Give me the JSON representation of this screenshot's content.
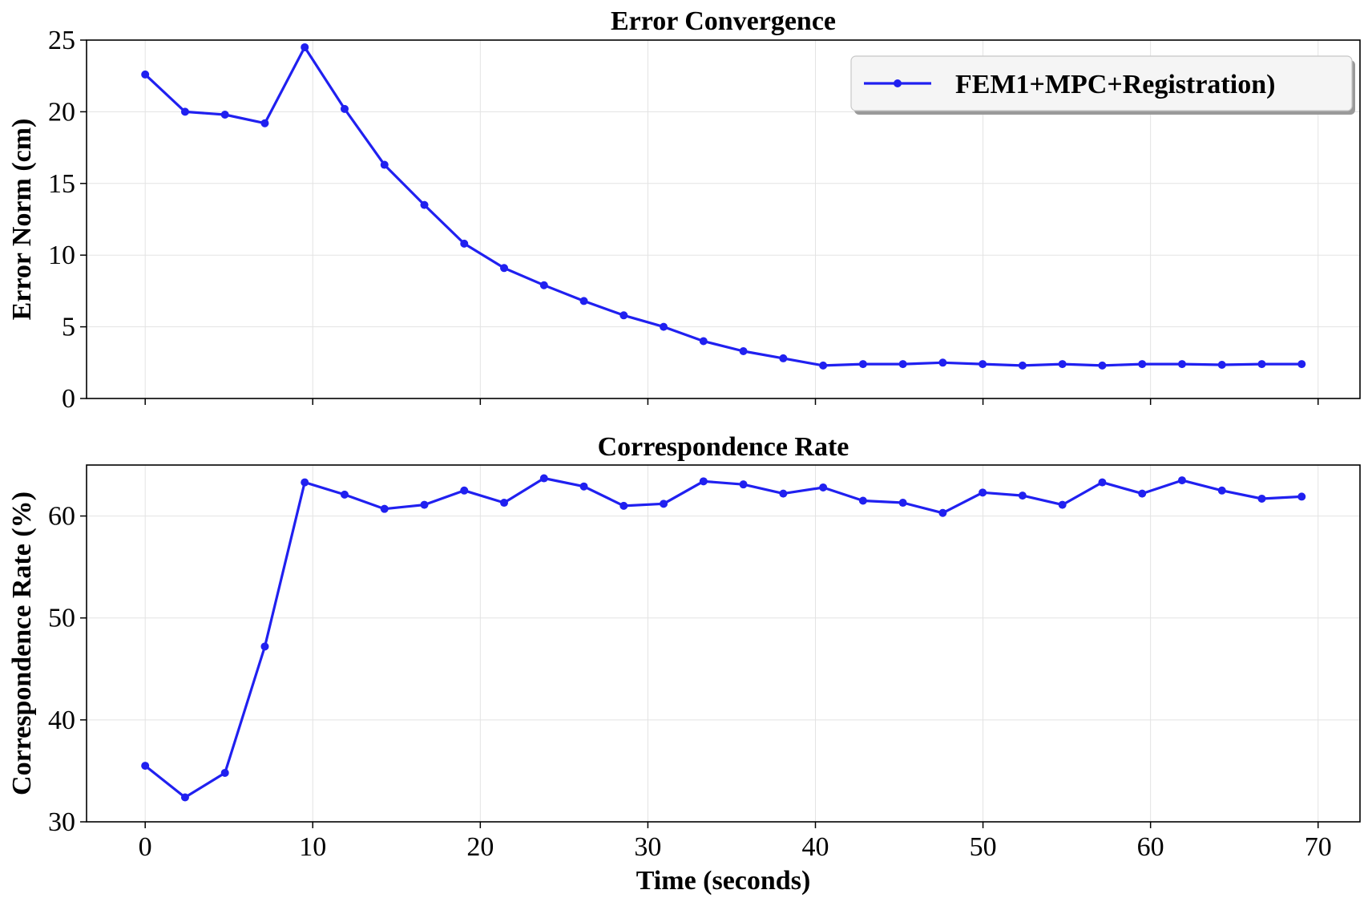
{
  "chart_data": [
    {
      "type": "line",
      "title": "Error Convergence",
      "xlabel": "",
      "ylabel": "Error Norm (cm)",
      "xlim": [
        -3.5,
        72.5
      ],
      "ylim": [
        0,
        25
      ],
      "xticks": [
        0,
        10,
        20,
        30,
        40,
        50,
        60,
        70
      ],
      "yticks": [
        0,
        5,
        10,
        15,
        20,
        25
      ],
      "x_tick_labels_visible": false,
      "grid": true,
      "legend": {
        "placement": "top-right",
        "entries": [
          "FEM1+MPC+Registration)"
        ]
      },
      "series": [
        {
          "name": "FEM1+MPC+Registration)",
          "color": "#2020f0",
          "marker": "circle",
          "x": [
            0,
            2.38,
            4.76,
            7.14,
            9.52,
            11.9,
            14.28,
            16.66,
            19.04,
            21.42,
            23.8,
            26.18,
            28.56,
            30.94,
            33.32,
            35.7,
            38.08,
            40.46,
            42.84,
            45.22,
            47.6,
            49.98,
            52.36,
            54.74,
            57.12,
            59.5,
            61.88,
            64.26,
            66.64,
            69.02
          ],
          "y": [
            22.6,
            20.0,
            19.8,
            19.2,
            24.5,
            20.2,
            16.3,
            13.5,
            10.8,
            9.1,
            7.9,
            6.8,
            5.8,
            5.0,
            4.0,
            3.3,
            2.8,
            2.3,
            2.4,
            2.4,
            2.5,
            2.4,
            2.3,
            2.4,
            2.3,
            2.4,
            2.4,
            2.35,
            2.4,
            2.4
          ]
        }
      ]
    },
    {
      "type": "line",
      "title": "Correspondence Rate",
      "xlabel": "Time (seconds)",
      "ylabel": "Correspondence Rate (%)",
      "xlim": [
        -3.5,
        72.5
      ],
      "ylim": [
        30,
        65
      ],
      "xticks": [
        0,
        10,
        20,
        30,
        40,
        50,
        60,
        70
      ],
      "yticks": [
        30,
        40,
        50,
        60
      ],
      "grid": true,
      "series": [
        {
          "color": "#2020f0",
          "marker": "circle",
          "x": [
            0,
            2.38,
            4.76,
            7.14,
            9.52,
            11.9,
            14.28,
            16.66,
            19.04,
            21.42,
            23.8,
            26.18,
            28.56,
            30.94,
            33.32,
            35.7,
            38.08,
            40.46,
            42.84,
            45.22,
            47.6,
            49.98,
            52.36,
            54.74,
            57.12,
            59.5,
            61.88,
            64.26,
            66.64,
            69.02
          ],
          "y": [
            35.5,
            32.4,
            34.8,
            47.2,
            63.3,
            62.1,
            60.7,
            61.1,
            62.5,
            61.3,
            63.7,
            62.9,
            61.0,
            61.2,
            63.4,
            63.1,
            62.2,
            62.8,
            61.5,
            61.3,
            60.3,
            62.3,
            62.0,
            61.1,
            63.3,
            62.2,
            63.5,
            62.5,
            61.7,
            61.9
          ]
        }
      ]
    }
  ]
}
